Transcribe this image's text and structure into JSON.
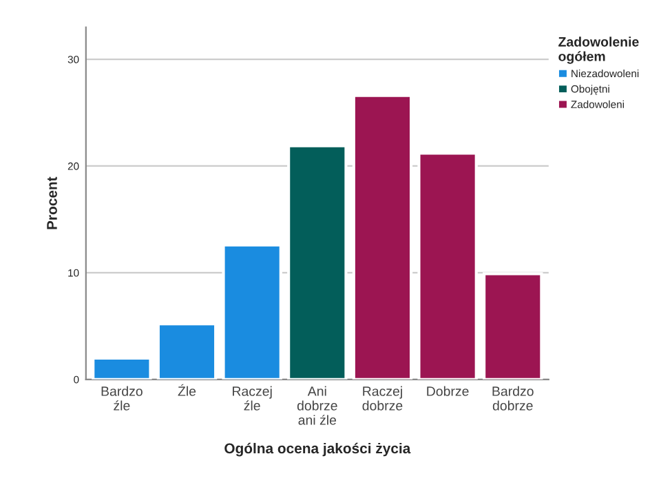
{
  "chart_data": {
    "type": "bar",
    "xlabel": "Ogólna ocena jakości życia",
    "ylabel": "Procent",
    "legend_title": "Zadowolenie\nogółem",
    "categories": [
      "Bardzo\nźle",
      "Źle",
      "Raczej\nźle",
      "Ani\ndobrze\nani źle",
      "Raczej\ndobrze",
      "Dobrze",
      "Bardzo\ndobrze"
    ],
    "series": [
      {
        "name": "Niezadowoleni",
        "color": "#1a8ce0",
        "values": [
          2.0,
          5.2,
          12.6,
          null,
          null,
          null,
          null
        ]
      },
      {
        "name": "Obojętni",
        "color": "#035e5a",
        "values": [
          null,
          null,
          null,
          21.9,
          null,
          null,
          null
        ]
      },
      {
        "name": "Zadowoleni",
        "color": "#9c1552",
        "values": [
          null,
          null,
          null,
          null,
          26.6,
          21.2,
          9.9
        ]
      }
    ],
    "ylim": [
      0,
      33
    ],
    "yticks": [
      0,
      10,
      20,
      30
    ],
    "grid": "y",
    "legend": "top right"
  }
}
